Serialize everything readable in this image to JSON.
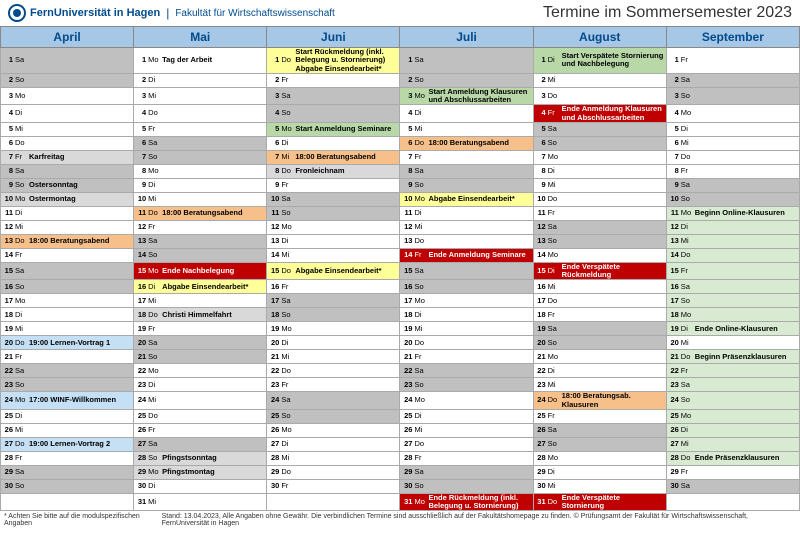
{
  "header": {
    "uni": "FernUniversität in Hagen",
    "faculty": "Fakultät für Wirtschaftswissenschaft",
    "title": "Termine im Sommersemester 2023"
  },
  "colors": {
    "header_bg": "#a7c7e7",
    "header_text": "#004b8c",
    "weekend": "#c0c0c0",
    "lightgray": "#e6e6e6",
    "white": "#ffffff",
    "yellow": "#ffff99",
    "green": "#b8d8a8",
    "lightgreen": "#d9ead3",
    "red": "#c00000",
    "red_text": "#ffffff",
    "orange": "#f7c08a",
    "lightblue": "#c5e0f5",
    "holiday": "#d9d9d9"
  },
  "months": [
    "April",
    "Mai",
    "Juni",
    "Juli",
    "August",
    "September"
  ],
  "days": [
    [
      {
        "n": 1,
        "a": "Sa",
        "c": "weekend"
      },
      {
        "n": 1,
        "a": "Mo",
        "c": "white",
        "e": "Tag der Arbeit"
      },
      {
        "n": 1,
        "a": "Do",
        "c": "yellow",
        "e": "Start Rückmeldung (inkl. Belegung u. Stornierung) Abgabe Einsendearbeit*"
      },
      {
        "n": 1,
        "a": "Sa",
        "c": "weekend"
      },
      {
        "n": 1,
        "a": "Di",
        "c": "green",
        "e": "Start Verspätete Stornierung und Nachbelegung"
      },
      {
        "n": 1,
        "a": "Fr",
        "c": "white"
      }
    ],
    [
      {
        "n": 2,
        "a": "So",
        "c": "weekend"
      },
      {
        "n": 2,
        "a": "Di",
        "c": "white"
      },
      {
        "n": 2,
        "a": "Fr",
        "c": "white"
      },
      {
        "n": 2,
        "a": "So",
        "c": "weekend"
      },
      {
        "n": 2,
        "a": "Mi",
        "c": "white"
      },
      {
        "n": 2,
        "a": "Sa",
        "c": "weekend"
      }
    ],
    [
      {
        "n": 3,
        "a": "Mo",
        "c": "white"
      },
      {
        "n": 3,
        "a": "Mi",
        "c": "white"
      },
      {
        "n": 3,
        "a": "Sa",
        "c": "weekend"
      },
      {
        "n": 3,
        "a": "Mo",
        "c": "green",
        "e": "Start Anmeldung Klausuren und Abschlussarbeiten"
      },
      {
        "n": 3,
        "a": "Do",
        "c": "white"
      },
      {
        "n": 3,
        "a": "So",
        "c": "weekend"
      }
    ],
    [
      {
        "n": 4,
        "a": "Di",
        "c": "white"
      },
      {
        "n": 4,
        "a": "Do",
        "c": "white"
      },
      {
        "n": 4,
        "a": "So",
        "c": "weekend"
      },
      {
        "n": 4,
        "a": "Di",
        "c": "white"
      },
      {
        "n": 4,
        "a": "Fr",
        "c": "red",
        "e": "Ende Anmeldung Klausuren und Abschlussarbeiten",
        "tc": "red_text"
      },
      {
        "n": 4,
        "a": "Mo",
        "c": "white"
      }
    ],
    [
      {
        "n": 5,
        "a": "Mi",
        "c": "white"
      },
      {
        "n": 5,
        "a": "Fr",
        "c": "white"
      },
      {
        "n": 5,
        "a": "Mo",
        "c": "green",
        "e": "Start Anmeldung Seminare"
      },
      {
        "n": 5,
        "a": "Mi",
        "c": "white"
      },
      {
        "n": 5,
        "a": "Sa",
        "c": "weekend"
      },
      {
        "n": 5,
        "a": "Di",
        "c": "white"
      }
    ],
    [
      {
        "n": 6,
        "a": "Do",
        "c": "white"
      },
      {
        "n": 6,
        "a": "Sa",
        "c": "weekend"
      },
      {
        "n": 6,
        "a": "Di",
        "c": "white"
      },
      {
        "n": 6,
        "a": "Do",
        "c": "orange",
        "e": "18:00 Beratungsabend"
      },
      {
        "n": 6,
        "a": "So",
        "c": "weekend"
      },
      {
        "n": 6,
        "a": "Mi",
        "c": "white"
      }
    ],
    [
      {
        "n": 7,
        "a": "Fr",
        "c": "holiday",
        "e": "Karfreitag"
      },
      {
        "n": 7,
        "a": "So",
        "c": "weekend"
      },
      {
        "n": 7,
        "a": "Mi",
        "c": "orange",
        "e": "18:00 Beratungsabend"
      },
      {
        "n": 7,
        "a": "Fr",
        "c": "white"
      },
      {
        "n": 7,
        "a": "Mo",
        "c": "white"
      },
      {
        "n": 7,
        "a": "Do",
        "c": "white"
      }
    ],
    [
      {
        "n": 8,
        "a": "Sa",
        "c": "weekend"
      },
      {
        "n": 8,
        "a": "Mo",
        "c": "white"
      },
      {
        "n": 8,
        "a": "Do",
        "c": "holiday",
        "e": "Fronleichnam"
      },
      {
        "n": 8,
        "a": "Sa",
        "c": "weekend"
      },
      {
        "n": 8,
        "a": "Di",
        "c": "white"
      },
      {
        "n": 8,
        "a": "Fr",
        "c": "white"
      }
    ],
    [
      {
        "n": 9,
        "a": "So",
        "c": "weekend",
        "e": "Ostersonntag"
      },
      {
        "n": 9,
        "a": "Di",
        "c": "white"
      },
      {
        "n": 9,
        "a": "Fr",
        "c": "white"
      },
      {
        "n": 9,
        "a": "So",
        "c": "weekend"
      },
      {
        "n": 9,
        "a": "Mi",
        "c": "white"
      },
      {
        "n": 9,
        "a": "Sa",
        "c": "weekend"
      }
    ],
    [
      {
        "n": 10,
        "a": "Mo",
        "c": "holiday",
        "e": "Ostermontag"
      },
      {
        "n": 10,
        "a": "Mi",
        "c": "white"
      },
      {
        "n": 10,
        "a": "Sa",
        "c": "weekend"
      },
      {
        "n": 10,
        "a": "Mo",
        "c": "yellow",
        "e": "Abgabe Einsendearbeit*"
      },
      {
        "n": 10,
        "a": "Do",
        "c": "white"
      },
      {
        "n": 10,
        "a": "So",
        "c": "weekend"
      }
    ],
    [
      {
        "n": 11,
        "a": "Di",
        "c": "white"
      },
      {
        "n": 11,
        "a": "Do",
        "c": "orange",
        "e": "18:00 Beratungsabend"
      },
      {
        "n": 11,
        "a": "So",
        "c": "weekend"
      },
      {
        "n": 11,
        "a": "Di",
        "c": "white"
      },
      {
        "n": 11,
        "a": "Fr",
        "c": "white"
      },
      {
        "n": 11,
        "a": "Mo",
        "c": "lightgreen",
        "e": "Beginn Online-Klausuren"
      }
    ],
    [
      {
        "n": 12,
        "a": "Mi",
        "c": "white"
      },
      {
        "n": 12,
        "a": "Fr",
        "c": "white"
      },
      {
        "n": 12,
        "a": "Mo",
        "c": "white"
      },
      {
        "n": 12,
        "a": "Mi",
        "c": "white"
      },
      {
        "n": 12,
        "a": "Sa",
        "c": "weekend"
      },
      {
        "n": 12,
        "a": "Di",
        "c": "lightgreen"
      }
    ],
    [
      {
        "n": 13,
        "a": "Do",
        "c": "orange",
        "e": "18:00 Beratungsabend"
      },
      {
        "n": 13,
        "a": "Sa",
        "c": "weekend"
      },
      {
        "n": 13,
        "a": "Di",
        "c": "white"
      },
      {
        "n": 13,
        "a": "Do",
        "c": "white"
      },
      {
        "n": 13,
        "a": "So",
        "c": "weekend"
      },
      {
        "n": 13,
        "a": "Mi",
        "c": "lightgreen"
      }
    ],
    [
      {
        "n": 14,
        "a": "Fr",
        "c": "white"
      },
      {
        "n": 14,
        "a": "So",
        "c": "weekend"
      },
      {
        "n": 14,
        "a": "Mi",
        "c": "white"
      },
      {
        "n": 14,
        "a": "Fr",
        "c": "red",
        "e": "Ende Anmeldung Seminare",
        "tc": "red_text"
      },
      {
        "n": 14,
        "a": "Mo",
        "c": "white"
      },
      {
        "n": 14,
        "a": "Do",
        "c": "lightgreen"
      }
    ],
    [
      {
        "n": 15,
        "a": "Sa",
        "c": "weekend"
      },
      {
        "n": 15,
        "a": "Mo",
        "c": "red",
        "e": "Ende Nachbelegung",
        "tc": "red_text"
      },
      {
        "n": 15,
        "a": "Do",
        "c": "yellow",
        "e": "Abgabe Einsendearbeit*"
      },
      {
        "n": 15,
        "a": "Sa",
        "c": "weekend"
      },
      {
        "n": 15,
        "a": "Di",
        "c": "red",
        "e": "Ende Verspätete Rückmeldung",
        "tc": "red_text"
      },
      {
        "n": 15,
        "a": "Fr",
        "c": "lightgreen"
      }
    ],
    [
      {
        "n": 16,
        "a": "So",
        "c": "weekend"
      },
      {
        "n": 16,
        "a": "Di",
        "c": "yellow",
        "e": "Abgabe Einsendearbeit*"
      },
      {
        "n": 16,
        "a": "Fr",
        "c": "white"
      },
      {
        "n": 16,
        "a": "So",
        "c": "weekend"
      },
      {
        "n": 16,
        "a": "Mi",
        "c": "white"
      },
      {
        "n": 16,
        "a": "Sa",
        "c": "lightgreen"
      }
    ],
    [
      {
        "n": 17,
        "a": "Mo",
        "c": "white"
      },
      {
        "n": 17,
        "a": "Mi",
        "c": "white"
      },
      {
        "n": 17,
        "a": "Sa",
        "c": "weekend"
      },
      {
        "n": 17,
        "a": "Mo",
        "c": "white"
      },
      {
        "n": 17,
        "a": "Do",
        "c": "white"
      },
      {
        "n": 17,
        "a": "So",
        "c": "lightgreen"
      }
    ],
    [
      {
        "n": 18,
        "a": "Di",
        "c": "white"
      },
      {
        "n": 18,
        "a": "Do",
        "c": "holiday",
        "e": "Christi Himmelfahrt"
      },
      {
        "n": 18,
        "a": "So",
        "c": "weekend"
      },
      {
        "n": 18,
        "a": "Di",
        "c": "white"
      },
      {
        "n": 18,
        "a": "Fr",
        "c": "white"
      },
      {
        "n": 18,
        "a": "Mo",
        "c": "lightgreen"
      }
    ],
    [
      {
        "n": 19,
        "a": "Mi",
        "c": "white"
      },
      {
        "n": 19,
        "a": "Fr",
        "c": "white"
      },
      {
        "n": 19,
        "a": "Mo",
        "c": "white"
      },
      {
        "n": 19,
        "a": "Mi",
        "c": "white"
      },
      {
        "n": 19,
        "a": "Sa",
        "c": "weekend"
      },
      {
        "n": 19,
        "a": "Di",
        "c": "lightgreen",
        "e": "Ende Online-Klausuren"
      }
    ],
    [
      {
        "n": 20,
        "a": "Do",
        "c": "lightblue",
        "e": "19:00 Lernen-Vortrag 1"
      },
      {
        "n": 20,
        "a": "Sa",
        "c": "weekend"
      },
      {
        "n": 20,
        "a": "Di",
        "c": "white"
      },
      {
        "n": 20,
        "a": "Do",
        "c": "white"
      },
      {
        "n": 20,
        "a": "So",
        "c": "weekend"
      },
      {
        "n": 20,
        "a": "Mi",
        "c": "white"
      }
    ],
    [
      {
        "n": 21,
        "a": "Fr",
        "c": "white"
      },
      {
        "n": 21,
        "a": "So",
        "c": "weekend"
      },
      {
        "n": 21,
        "a": "Mi",
        "c": "white"
      },
      {
        "n": 21,
        "a": "Fr",
        "c": "white"
      },
      {
        "n": 21,
        "a": "Mo",
        "c": "white"
      },
      {
        "n": 21,
        "a": "Do",
        "c": "lightgreen",
        "e": "Beginn Präsenzklausuren"
      }
    ],
    [
      {
        "n": 22,
        "a": "Sa",
        "c": "weekend"
      },
      {
        "n": 22,
        "a": "Mo",
        "c": "white"
      },
      {
        "n": 22,
        "a": "Do",
        "c": "white"
      },
      {
        "n": 22,
        "a": "Sa",
        "c": "weekend"
      },
      {
        "n": 22,
        "a": "Di",
        "c": "white"
      },
      {
        "n": 22,
        "a": "Fr",
        "c": "lightgreen"
      }
    ],
    [
      {
        "n": 23,
        "a": "So",
        "c": "weekend"
      },
      {
        "n": 23,
        "a": "Di",
        "c": "white"
      },
      {
        "n": 23,
        "a": "Fr",
        "c": "white"
      },
      {
        "n": 23,
        "a": "So",
        "c": "weekend"
      },
      {
        "n": 23,
        "a": "Mi",
        "c": "white"
      },
      {
        "n": 23,
        "a": "Sa",
        "c": "lightgreen"
      }
    ],
    [
      {
        "n": 24,
        "a": "Mo",
        "c": "lightblue",
        "e": "17:00 WINF-Willkommen"
      },
      {
        "n": 24,
        "a": "Mi",
        "c": "white"
      },
      {
        "n": 24,
        "a": "Sa",
        "c": "weekend"
      },
      {
        "n": 24,
        "a": "Mo",
        "c": "white"
      },
      {
        "n": 24,
        "a": "Do",
        "c": "orange",
        "e": "18:00 Beratungsab. Klausuren"
      },
      {
        "n": 24,
        "a": "So",
        "c": "lightgreen"
      }
    ],
    [
      {
        "n": 25,
        "a": "Di",
        "c": "white"
      },
      {
        "n": 25,
        "a": "Do",
        "c": "white"
      },
      {
        "n": 25,
        "a": "So",
        "c": "weekend"
      },
      {
        "n": 25,
        "a": "Di",
        "c": "white"
      },
      {
        "n": 25,
        "a": "Fr",
        "c": "white"
      },
      {
        "n": 25,
        "a": "Mo",
        "c": "lightgreen"
      }
    ],
    [
      {
        "n": 26,
        "a": "Mi",
        "c": "white"
      },
      {
        "n": 26,
        "a": "Fr",
        "c": "white"
      },
      {
        "n": 26,
        "a": "Mo",
        "c": "white"
      },
      {
        "n": 26,
        "a": "Mi",
        "c": "white"
      },
      {
        "n": 26,
        "a": "Sa",
        "c": "weekend"
      },
      {
        "n": 26,
        "a": "Di",
        "c": "lightgreen"
      }
    ],
    [
      {
        "n": 27,
        "a": "Do",
        "c": "lightblue",
        "e": "19:00 Lernen-Vortrag 2"
      },
      {
        "n": 27,
        "a": "Sa",
        "c": "weekend"
      },
      {
        "n": 27,
        "a": "Di",
        "c": "white"
      },
      {
        "n": 27,
        "a": "Do",
        "c": "white"
      },
      {
        "n": 27,
        "a": "So",
        "c": "weekend"
      },
      {
        "n": 27,
        "a": "Mi",
        "c": "lightgreen"
      }
    ],
    [
      {
        "n": 28,
        "a": "Fr",
        "c": "white"
      },
      {
        "n": 28,
        "a": "So",
        "c": "holiday",
        "e": "Pfingstsonntag"
      },
      {
        "n": 28,
        "a": "Mi",
        "c": "white"
      },
      {
        "n": 28,
        "a": "Fr",
        "c": "white"
      },
      {
        "n": 28,
        "a": "Mo",
        "c": "white"
      },
      {
        "n": 28,
        "a": "Do",
        "c": "lightgreen",
        "e": "Ende Präsenzklausuren"
      }
    ],
    [
      {
        "n": 29,
        "a": "Sa",
        "c": "weekend"
      },
      {
        "n": 29,
        "a": "Mo",
        "c": "holiday",
        "e": "Pfingstmontag"
      },
      {
        "n": 29,
        "a": "Do",
        "c": "white"
      },
      {
        "n": 29,
        "a": "Sa",
        "c": "weekend"
      },
      {
        "n": 29,
        "a": "Di",
        "c": "white"
      },
      {
        "n": 29,
        "a": "Fr",
        "c": "white"
      }
    ],
    [
      {
        "n": 30,
        "a": "So",
        "c": "weekend"
      },
      {
        "n": 30,
        "a": "Di",
        "c": "white"
      },
      {
        "n": 30,
        "a": "Fr",
        "c": "white"
      },
      {
        "n": 30,
        "a": "So",
        "c": "weekend"
      },
      {
        "n": 30,
        "a": "Mi",
        "c": "white"
      },
      {
        "n": 30,
        "a": "Sa",
        "c": "weekend"
      }
    ],
    [
      {
        "empty": true
      },
      {
        "n": 31,
        "a": "Mi",
        "c": "white"
      },
      {
        "empty": true
      },
      {
        "n": 31,
        "a": "Mo",
        "c": "red",
        "e": "Ende Rückmeldung (inkl. Belegung u. Stornierung)",
        "tc": "red_text"
      },
      {
        "n": 31,
        "a": "Do",
        "c": "red",
        "e": "Ende Verspätete Stornierung",
        "tc": "red_text"
      },
      {
        "empty": true
      }
    ]
  ],
  "footnote_left": "* Achten Sie bitte auf die modulspezifischen Angaben",
  "footnote_right": "Stand: 13.04.2023, Alle Angaben ohne Gewähr. Die verbindlichen Termine sind ausschließlich auf der Fakultätshomepage zu finden. © Prüfungsamt der Fakultät für Wirtschaftswissenschaft, FernUniversität in Hagen"
}
